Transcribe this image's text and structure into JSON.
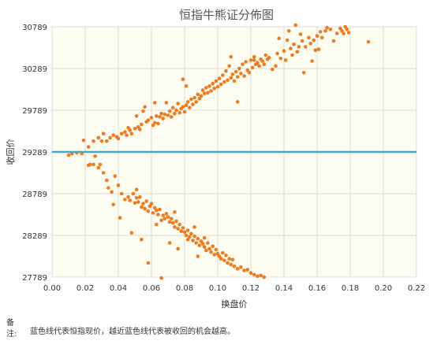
{
  "chart_data": {
    "type": "scatter",
    "title": "恒指牛熊证分佈图",
    "xlabel": "换盘价",
    "ylabel": "收回价",
    "xlim": [
      0,
      0.22
    ],
    "ylim": [
      27789,
      30789
    ],
    "x_ticks": [
      "0.00",
      "0.02",
      "0.04",
      "0.06",
      "0.08",
      "0.10",
      "0.12",
      "0.14",
      "0.16",
      "0.18",
      "0.20",
      "0.22"
    ],
    "y_ticks": [
      "27789",
      "28289",
      "28789",
      "29289",
      "29789",
      "30289",
      "30789"
    ],
    "reference_line": {
      "y": 29289,
      "color": "#3fa9c6"
    },
    "point_color": "#f07b1e",
    "grid": true,
    "bull_series": [
      [
        0.01,
        29249
      ],
      [
        0.012,
        29269
      ],
      [
        0.015,
        29279
      ],
      [
        0.018,
        29269
      ],
      [
        0.019,
        29429
      ],
      [
        0.022,
        29349
      ],
      [
        0.025,
        29419
      ],
      [
        0.028,
        29459
      ],
      [
        0.03,
        29419
      ],
      [
        0.031,
        29509
      ],
      [
        0.033,
        29419
      ],
      [
        0.035,
        29459
      ],
      [
        0.037,
        29489
      ],
      [
        0.039,
        29469
      ],
      [
        0.04,
        29449
      ],
      [
        0.042,
        29509
      ],
      [
        0.044,
        29529
      ],
      [
        0.045,
        29489
      ],
      [
        0.046,
        29579
      ],
      [
        0.047,
        29549
      ],
      [
        0.048,
        29509
      ],
      [
        0.05,
        29569
      ],
      [
        0.052,
        29589
      ],
      [
        0.053,
        29559
      ],
      [
        0.054,
        29619
      ],
      [
        0.055,
        29779
      ],
      [
        0.056,
        29829
      ],
      [
        0.057,
        29649
      ],
      [
        0.058,
        29669
      ],
      [
        0.06,
        29699
      ],
      [
        0.061,
        29609
      ],
      [
        0.062,
        29639
      ],
      [
        0.063,
        29719
      ],
      [
        0.064,
        29629
      ],
      [
        0.065,
        29709
      ],
      [
        0.066,
        29749
      ],
      [
        0.067,
        29689
      ],
      [
        0.068,
        29739
      ],
      [
        0.069,
        29879
      ],
      [
        0.07,
        29729
      ],
      [
        0.071,
        29779
      ],
      [
        0.072,
        29709
      ],
      [
        0.073,
        29819
      ],
      [
        0.074,
        29749
      ],
      [
        0.075,
        29789
      ],
      [
        0.076,
        29869
      ],
      [
        0.077,
        29759
      ],
      [
        0.078,
        29809
      ],
      [
        0.079,
        29829
      ],
      [
        0.08,
        29769
      ],
      [
        0.081,
        29849
      ],
      [
        0.082,
        29889
      ],
      [
        0.083,
        29819
      ],
      [
        0.084,
        29919
      ],
      [
        0.085,
        29859
      ],
      [
        0.086,
        29939
      ],
      [
        0.087,
        29889
      ],
      [
        0.088,
        29979
      ],
      [
        0.089,
        29929
      ],
      [
        0.09,
        29959
      ],
      [
        0.091,
        30029
      ],
      [
        0.092,
        29989
      ],
      [
        0.093,
        30059
      ],
      [
        0.094,
        29999
      ],
      [
        0.095,
        30079
      ],
      [
        0.096,
        30019
      ],
      [
        0.097,
        30109
      ],
      [
        0.098,
        30049
      ],
      [
        0.099,
        30139
      ],
      [
        0.1,
        30069
      ],
      [
        0.101,
        30169
      ],
      [
        0.102,
        30099
      ],
      [
        0.103,
        30209
      ],
      [
        0.104,
        30129
      ],
      [
        0.105,
        30259
      ],
      [
        0.106,
        30149
      ],
      [
        0.107,
        30319
      ],
      [
        0.108,
        30179
      ],
      [
        0.109,
        30219
      ],
      [
        0.11,
        30139
      ],
      [
        0.111,
        30249
      ],
      [
        0.112,
        30189
      ],
      [
        0.113,
        30289
      ],
      [
        0.114,
        30229
      ],
      [
        0.115,
        30339
      ],
      [
        0.116,
        30199
      ],
      [
        0.117,
        30369
      ],
      [
        0.118,
        30269
      ],
      [
        0.119,
        30239
      ],
      [
        0.12,
        30389
      ],
      [
        0.121,
        30299
      ],
      [
        0.122,
        30429
      ],
      [
        0.123,
        30339
      ],
      [
        0.124,
        30359
      ],
      [
        0.125,
        30319
      ],
      [
        0.126,
        30399
      ],
      [
        0.127,
        30379
      ],
      [
        0.128,
        30339
      ],
      [
        0.129,
        30449
      ],
      [
        0.13,
        30399
      ],
      [
        0.131,
        30419
      ],
      [
        0.133,
        30279
      ],
      [
        0.135,
        30319
      ],
      [
        0.136,
        30469
      ],
      [
        0.138,
        30409
      ],
      [
        0.14,
        30499
      ],
      [
        0.141,
        30389
      ],
      [
        0.142,
        30629
      ],
      [
        0.143,
        30739
      ],
      [
        0.144,
        30529
      ],
      [
        0.145,
        30449
      ],
      [
        0.146,
        30579
      ],
      [
        0.147,
        30809
      ],
      [
        0.148,
        30489
      ],
      [
        0.149,
        30549
      ],
      [
        0.15,
        30699
      ],
      [
        0.151,
        30619
      ],
      [
        0.152,
        30239
      ],
      [
        0.153,
        30549
      ],
      [
        0.155,
        30659
      ],
      [
        0.156,
        30589
      ],
      [
        0.157,
        30379
      ],
      [
        0.158,
        30629
      ],
      [
        0.16,
        30679
      ],
      [
        0.161,
        30519
      ],
      [
        0.162,
        30729
      ],
      [
        0.163,
        30659
      ],
      [
        0.165,
        30739
      ],
      [
        0.166,
        30779
      ],
      [
        0.168,
        30759
      ],
      [
        0.17,
        30619
      ],
      [
        0.172,
        30709
      ],
      [
        0.174,
        30769
      ],
      [
        0.175,
        30739
      ],
      [
        0.176,
        30709
      ],
      [
        0.177,
        30789
      ],
      [
        0.178,
        30759
      ],
      [
        0.179,
        30719
      ],
      [
        0.191,
        30609
      ],
      [
        0.051,
        29719
      ],
      [
        0.062,
        29879
      ],
      [
        0.079,
        30159
      ],
      [
        0.081,
        30079
      ],
      [
        0.108,
        30429
      ],
      [
        0.112,
        29889
      ],
      [
        0.122,
        30389
      ],
      [
        0.137,
        30649
      ],
      [
        0.159,
        30509
      ]
    ],
    "bear_series": [
      [
        0.022,
        29129
      ],
      [
        0.023,
        29139
      ],
      [
        0.025,
        29139
      ],
      [
        0.026,
        29239
      ],
      [
        0.028,
        29099
      ],
      [
        0.029,
        29139
      ],
      [
        0.031,
        29039
      ],
      [
        0.033,
        28949
      ],
      [
        0.034,
        28859
      ],
      [
        0.036,
        28809
      ],
      [
        0.037,
        28659
      ],
      [
        0.038,
        28999
      ],
      [
        0.04,
        28889
      ],
      [
        0.041,
        28499
      ],
      [
        0.042,
        28789
      ],
      [
        0.044,
        28719
      ],
      [
        0.046,
        28749
      ],
      [
        0.047,
        28709
      ],
      [
        0.048,
        28319
      ],
      [
        0.049,
        28789
      ],
      [
        0.05,
        28679
      ],
      [
        0.051,
        28739
      ],
      [
        0.052,
        28689
      ],
      [
        0.053,
        28749
      ],
      [
        0.054,
        28629
      ],
      [
        0.055,
        28669
      ],
      [
        0.056,
        28609
      ],
      [
        0.057,
        28699
      ],
      [
        0.058,
        28579
      ],
      [
        0.059,
        28639
      ],
      [
        0.06,
        28669
      ],
      [
        0.061,
        28559
      ],
      [
        0.062,
        28619
      ],
      [
        0.063,
        28589
      ],
      [
        0.064,
        28539
      ],
      [
        0.065,
        28599
      ],
      [
        0.066,
        28469
      ],
      [
        0.067,
        28529
      ],
      [
        0.068,
        28489
      ],
      [
        0.069,
        28549
      ],
      [
        0.07,
        28509
      ],
      [
        0.071,
        28449
      ],
      [
        0.072,
        28489
      ],
      [
        0.073,
        28439
      ],
      [
        0.074,
        28389
      ],
      [
        0.075,
        28459
      ],
      [
        0.076,
        28369
      ],
      [
        0.077,
        28419
      ],
      [
        0.078,
        28339
      ],
      [
        0.079,
        28379
      ],
      [
        0.08,
        28329
      ],
      [
        0.081,
        28289
      ],
      [
        0.082,
        28349
      ],
      [
        0.083,
        28269
      ],
      [
        0.084,
        28309
      ],
      [
        0.085,
        28229
      ],
      [
        0.086,
        28279
      ],
      [
        0.087,
        28199
      ],
      [
        0.088,
        28249
      ],
      [
        0.089,
        28169
      ],
      [
        0.09,
        28219
      ],
      [
        0.091,
        28189
      ],
      [
        0.092,
        28149
      ],
      [
        0.093,
        28109
      ],
      [
        0.094,
        28199
      ],
      [
        0.095,
        28129
      ],
      [
        0.096,
        28089
      ],
      [
        0.097,
        28159
      ],
      [
        0.098,
        28059
      ],
      [
        0.099,
        28119
      ],
      [
        0.1,
        28069
      ],
      [
        0.101,
        28039
      ],
      [
        0.102,
        28009
      ],
      [
        0.103,
        28079
      ],
      [
        0.104,
        27989
      ],
      [
        0.105,
        28049
      ],
      [
        0.106,
        27959
      ],
      [
        0.107,
        28009
      ],
      [
        0.108,
        27939
      ],
      [
        0.109,
        27999
      ],
      [
        0.11,
        27919
      ],
      [
        0.112,
        27889
      ],
      [
        0.114,
        27909
      ],
      [
        0.116,
        27869
      ],
      [
        0.118,
        27879
      ],
      [
        0.12,
        27839
      ],
      [
        0.122,
        27819
      ],
      [
        0.124,
        27799
      ],
      [
        0.126,
        27809
      ],
      [
        0.128,
        27789
      ],
      [
        0.051,
        28839
      ],
      [
        0.054,
        28239
      ],
      [
        0.058,
        27959
      ],
      [
        0.063,
        28419
      ],
      [
        0.066,
        27779
      ],
      [
        0.071,
        28199
      ],
      [
        0.074,
        28569
      ],
      [
        0.076,
        28129
      ],
      [
        0.082,
        28239
      ],
      [
        0.086,
        28389
      ],
      [
        0.088,
        28039
      ],
      [
        0.092,
        28259
      ]
    ]
  },
  "note": {
    "label": "备注:",
    "text": "蓝色线代表恒指现价，越近蓝色线代表被收回的机会越高。"
  }
}
